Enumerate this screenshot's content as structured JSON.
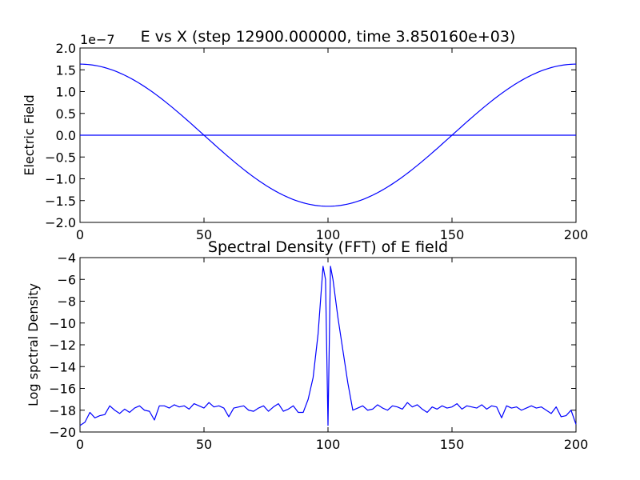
{
  "chart_data": [
    {
      "type": "line",
      "title": "E vs X (step 12900.000000, time 3.850160e+03)",
      "xlabel": "",
      "ylabel": "Electric Field",
      "offset_label": "1e−7",
      "xlim": [
        0,
        200
      ],
      "ylim": [
        -2.0,
        2.0
      ],
      "x_ticks": [
        "0",
        "50",
        "100",
        "150",
        "200"
      ],
      "y_ticks": [
        "−2.0",
        "−1.5",
        "−1.0",
        "−0.5",
        "0.0",
        "0.5",
        "1.0",
        "1.5",
        "2.0"
      ],
      "y_scale": 1e-07,
      "series": [
        {
          "color": "#0000ff",
          "kind": "cosine",
          "x": [
            0,
            10,
            20,
            30,
            40,
            50,
            60,
            70,
            80,
            90,
            100,
            110,
            120,
            130,
            140,
            150,
            160,
            170,
            180,
            190,
            200
          ],
          "values": [
            1.63,
            1.59,
            1.49,
            1.32,
            0.96,
            0.0,
            -0.5,
            -0.96,
            -1.32,
            -1.55,
            -1.63,
            -1.55,
            -1.32,
            -0.96,
            -0.5,
            0.0,
            0.5,
            0.96,
            1.32,
            1.55,
            1.63
          ]
        },
        {
          "color": "#0000ff",
          "kind": "zero-line",
          "x": [
            0,
            200
          ],
          "values": [
            0,
            0
          ]
        }
      ]
    },
    {
      "type": "line",
      "title": "Spectral Density (FFT) of E field",
      "xlabel": "",
      "ylabel": "Log spctral Density",
      "xlim": [
        0,
        200
      ],
      "ylim": [
        -20,
        -4
      ],
      "x_ticks": [
        "0",
        "50",
        "100",
        "150",
        "200"
      ],
      "y_ticks": [
        "−20",
        "−18",
        "−16",
        "−14",
        "−12",
        "−10",
        "−8",
        "−6",
        "−4"
      ],
      "series": [
        {
          "color": "#0000ff",
          "x": [
            0,
            2,
            4,
            6,
            8,
            10,
            12,
            14,
            16,
            18,
            20,
            22,
            24,
            26,
            28,
            30,
            32,
            34,
            36,
            38,
            40,
            42,
            44,
            46,
            48,
            50,
            52,
            54,
            56,
            58,
            60,
            62,
            64,
            66,
            68,
            70,
            72,
            74,
            76,
            78,
            80,
            82,
            84,
            86,
            88,
            90,
            92,
            94,
            96,
            98,
            99,
            100,
            101,
            102,
            104,
            106,
            108,
            110,
            112,
            114,
            116,
            118,
            120,
            122,
            124,
            126,
            128,
            130,
            132,
            134,
            136,
            138,
            140,
            142,
            144,
            146,
            148,
            150,
            152,
            154,
            156,
            158,
            160,
            162,
            164,
            166,
            168,
            170,
            172,
            174,
            176,
            178,
            180,
            182,
            184,
            186,
            188,
            190,
            192,
            194,
            196,
            198,
            200
          ],
          "values": [
            -19.4,
            -19.1,
            -18.2,
            -18.7,
            -18.5,
            -18.4,
            -17.6,
            -18.0,
            -18.3,
            -17.9,
            -18.2,
            -17.8,
            -17.6,
            -18.0,
            -18.1,
            -18.9,
            -17.6,
            -17.6,
            -17.8,
            -17.5,
            -17.7,
            -17.6,
            -17.9,
            -17.4,
            -17.6,
            -17.8,
            -17.3,
            -17.7,
            -17.6,
            -17.8,
            -18.6,
            -17.8,
            -17.7,
            -17.6,
            -18.0,
            -18.1,
            -17.8,
            -17.6,
            -18.1,
            -17.7,
            -17.4,
            -18.1,
            -17.9,
            -17.6,
            -18.2,
            -18.2,
            -17.0,
            -15.0,
            -11.0,
            -4.8,
            -6.0,
            -19.4,
            -4.8,
            -6.0,
            -9.5,
            -12.5,
            -15.5,
            -18.0,
            -17.8,
            -17.6,
            -18.0,
            -17.9,
            -17.5,
            -17.8,
            -18.0,
            -17.6,
            -17.7,
            -17.9,
            -17.3,
            -17.7,
            -17.5,
            -17.9,
            -18.2,
            -17.7,
            -17.9,
            -17.6,
            -17.8,
            -17.7,
            -17.4,
            -17.9,
            -17.6,
            -17.7,
            -17.8,
            -17.5,
            -17.9,
            -17.6,
            -17.7,
            -18.7,
            -17.6,
            -17.8,
            -17.7,
            -18.0,
            -17.8,
            -17.6,
            -17.8,
            -17.7,
            -18.0,
            -18.3,
            -17.7,
            -18.6,
            -18.5,
            -18.0,
            -19.3
          ]
        }
      ]
    }
  ]
}
